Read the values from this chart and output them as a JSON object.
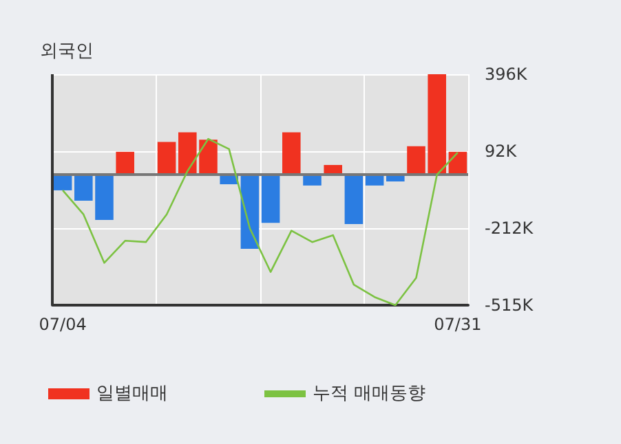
{
  "chart_data": {
    "type": "bar",
    "title": "외국인",
    "categories": [
      "07/04",
      null,
      null,
      null,
      null,
      null,
      null,
      null,
      null,
      null,
      null,
      null,
      null,
      null,
      null,
      null,
      null,
      null,
      null,
      "07/31"
    ],
    "series": [
      {
        "name": "일별매매",
        "colors": [
          "#2b7de2",
          "#2b7de2",
          "#2b7de2",
          "#f03220",
          "#f03220",
          "#f03220",
          "#f03220",
          "#f03220",
          "#2b7de2",
          "#2b7de2",
          "#2b7de2",
          "#f03220",
          "#2b7de2",
          "#f03220",
          "#2b7de2",
          "#2b7de2",
          "#2b7de2",
          "#f03220",
          "#f03220",
          "#f03220"
        ],
        "values": [
          -62,
          -103,
          -179,
          90,
          0,
          129,
          167,
          138,
          -38,
          -293,
          -190,
          167,
          -43,
          38,
          -195,
          -43,
          -27,
          112,
          396,
          90
        ]
      },
      {
        "name": "누적 매매동향",
        "type": "line",
        "color": "#7cc242",
        "values": [
          -62,
          -157,
          -348,
          -261,
          -266,
          -157,
          14,
          141,
          101,
          -212,
          -384,
          -221,
          -266,
          -239,
          -434,
          -483,
          -515,
          -407,
          0,
          87
        ]
      }
    ],
    "ylim": [
      -515,
      396
    ],
    "yticks": [
      {
        "value": 396,
        "label": "396K"
      },
      {
        "value": 92,
        "label": "92K"
      },
      {
        "value": -212,
        "label": "-212K"
      },
      {
        "value": -515,
        "label": "-515K"
      }
    ],
    "grid": true,
    "legend": "bottom left",
    "marker": "none",
    "line_style": "solid"
  }
}
